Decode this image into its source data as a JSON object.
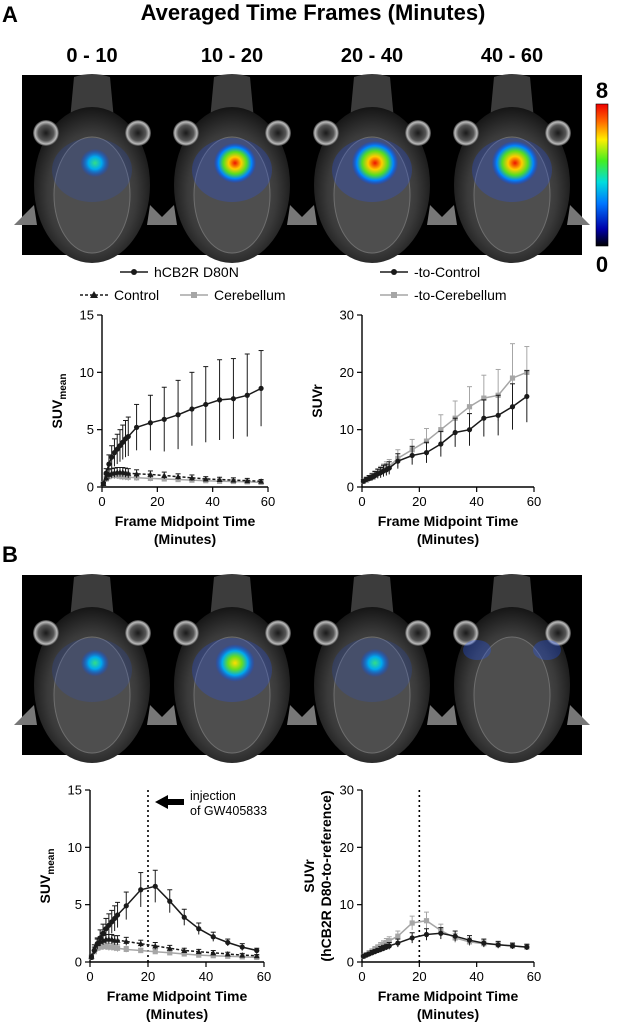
{
  "figure": {
    "panel_a_label": "A",
    "panel_b_label": "B",
    "header_title": "Averaged Time Frames (Minutes)",
    "time_frames": [
      "0 - 10",
      "10 - 20",
      "20 - 40",
      "40 - 60"
    ],
    "colorbar": {
      "max_label": "8",
      "min_label": "0"
    },
    "pet_images_a": [
      {
        "intensity": 0.35
      },
      {
        "intensity": 0.8
      },
      {
        "intensity": 0.95
      },
      {
        "intensity": 0.95
      }
    ],
    "pet_images_b": [
      {
        "intensity": 0.3
      },
      {
        "intensity": 0.7
      },
      {
        "intensity": 0.35
      },
      {
        "intensity": 0.0
      }
    ],
    "legend_a_left": {
      "series_1": "hCB2R D80N",
      "series_2": "Control",
      "series_3": "Cerebellum"
    },
    "legend_a_right": {
      "series_1": "-to-Control",
      "series_2": "-to-Cerebellum"
    },
    "annotation_injection": [
      "injection",
      "of GW405833"
    ],
    "colors": {
      "black_series": "#1a1a1a",
      "gray_series": "#a6a6a6"
    }
  },
  "chart_data": [
    {
      "id": "A-left",
      "type": "line",
      "xlabel": "Frame Midpoint Time",
      "xlabel2": "(Minutes)",
      "ylabel_main": "SUV",
      "ylabel_sub": "mean",
      "xlim": [
        0,
        60
      ],
      "ylim": [
        0,
        15
      ],
      "xticks": [
        "0",
        "20",
        "40",
        "60"
      ],
      "yticks": [
        "0",
        "5",
        "10",
        "15"
      ],
      "series": [
        {
          "name": "hCB2R D80N",
          "style": "solid-circle",
          "x": [
            0.5,
            1.5,
            2.5,
            3.5,
            4.5,
            5.5,
            6.5,
            7.5,
            8.5,
            9.5,
            12.5,
            17.5,
            22.5,
            27.5,
            32.5,
            37.5,
            42.5,
            47.5,
            52.5,
            57.5
          ],
          "y": [
            0.3,
            1.2,
            2.0,
            2.6,
            3.0,
            3.3,
            3.6,
            3.9,
            4.2,
            4.4,
            5.2,
            5.6,
            5.9,
            6.3,
            6.8,
            7.2,
            7.6,
            7.7,
            8.0,
            8.6
          ],
          "err": [
            0.1,
            0.4,
            0.8,
            1.0,
            1.2,
            1.3,
            1.4,
            1.5,
            1.6,
            1.7,
            2.0,
            2.4,
            2.8,
            3.0,
            3.2,
            3.3,
            3.5,
            3.5,
            3.6,
            3.3
          ]
        },
        {
          "name": "Control",
          "style": "dashed-triangle",
          "x": [
            0.5,
            1.5,
            2.5,
            3.5,
            4.5,
            5.5,
            6.5,
            7.5,
            8.5,
            9.5,
            12.5,
            17.5,
            22.5,
            27.5,
            32.5,
            37.5,
            42.5,
            47.5,
            52.5,
            57.5
          ],
          "y": [
            0.3,
            0.8,
            1.1,
            1.2,
            1.25,
            1.3,
            1.3,
            1.3,
            1.25,
            1.2,
            1.15,
            1.1,
            1.0,
            0.9,
            0.8,
            0.7,
            0.65,
            0.6,
            0.55,
            0.5
          ],
          "err": [
            0.1,
            0.3,
            0.4,
            0.4,
            0.4,
            0.4,
            0.4,
            0.4,
            0.4,
            0.4,
            0.35,
            0.3,
            0.3,
            0.25,
            0.25,
            0.2,
            0.2,
            0.2,
            0.2,
            0.15
          ]
        },
        {
          "name": "Cerebellum",
          "style": "gray-square",
          "x": [
            0.5,
            1.5,
            2.5,
            3.5,
            4.5,
            5.5,
            6.5,
            7.5,
            8.5,
            9.5,
            12.5,
            17.5,
            22.5,
            27.5,
            32.5,
            37.5,
            42.5,
            47.5,
            52.5,
            57.5
          ],
          "y": [
            0.3,
            0.7,
            0.9,
            1.0,
            1.0,
            1.0,
            0.95,
            0.9,
            0.9,
            0.85,
            0.8,
            0.75,
            0.7,
            0.65,
            0.6,
            0.55,
            0.5,
            0.48,
            0.45,
            0.4
          ],
          "err": [
            0.1,
            0.25,
            0.3,
            0.3,
            0.3,
            0.3,
            0.3,
            0.3,
            0.3,
            0.3,
            0.25,
            0.25,
            0.2,
            0.2,
            0.2,
            0.2,
            0.15,
            0.15,
            0.15,
            0.1
          ]
        }
      ]
    },
    {
      "id": "A-right",
      "type": "line",
      "xlabel": "Frame Midpoint Time",
      "xlabel2": "(Minutes)",
      "ylabel_main": "SUVr",
      "ylabel_sub": "",
      "xlim": [
        0,
        60
      ],
      "ylim": [
        0,
        30
      ],
      "xticks": [
        "0",
        "20",
        "40",
        "60"
      ],
      "yticks": [
        "0",
        "10",
        "20",
        "30"
      ],
      "series": [
        {
          "name": "-to-Control",
          "style": "solid-circle",
          "x": [
            0.5,
            1.5,
            2.5,
            3.5,
            4.5,
            5.5,
            6.5,
            7.5,
            8.5,
            9.5,
            12.5,
            17.5,
            22.5,
            27.5,
            32.5,
            37.5,
            42.5,
            47.5,
            52.5,
            57.5
          ],
          "y": [
            1.0,
            1.3,
            1.5,
            1.7,
            2.0,
            2.3,
            2.5,
            2.8,
            3.0,
            3.3,
            4.5,
            5.5,
            6.0,
            7.5,
            9.5,
            10.0,
            12.0,
            12.5,
            14.0,
            15.8
          ],
          "err": [
            0.3,
            0.4,
            0.5,
            0.6,
            0.7,
            0.8,
            0.9,
            1.0,
            1.0,
            1.1,
            1.3,
            1.6,
            1.8,
            2.2,
            2.5,
            2.8,
            3.2,
            3.5,
            4.0,
            4.5
          ]
        },
        {
          "name": "-to-Cerebellum",
          "style": "gray-square",
          "x": [
            0.5,
            1.5,
            2.5,
            3.5,
            4.5,
            5.5,
            6.5,
            7.5,
            8.5,
            9.5,
            12.5,
            17.5,
            22.5,
            27.5,
            32.5,
            37.5,
            42.5,
            47.5,
            52.5,
            57.5
          ],
          "y": [
            1.0,
            1.2,
            1.5,
            1.8,
            2.1,
            2.4,
            2.7,
            3.0,
            3.3,
            3.6,
            5.0,
            6.5,
            8.0,
            10.0,
            12.0,
            14.0,
            15.5,
            16.0,
            19.0,
            20.0
          ],
          "err": [
            0.3,
            0.4,
            0.5,
            0.6,
            0.7,
            0.8,
            0.9,
            1.0,
            1.1,
            1.2,
            1.5,
            1.8,
            2.2,
            2.6,
            3.0,
            3.5,
            4.0,
            4.5,
            6.0,
            4.5
          ]
        }
      ]
    },
    {
      "id": "B-left",
      "type": "line",
      "xlabel": "Frame Midpoint Time",
      "xlabel2": "(Minutes)",
      "ylabel_main": "SUV",
      "ylabel_sub": "mean",
      "xlim": [
        0,
        60
      ],
      "ylim": [
        0,
        15
      ],
      "xticks": [
        "0",
        "20",
        "40",
        "60"
      ],
      "yticks": [
        "0",
        "5",
        "10",
        "15"
      ],
      "vline_x": 20,
      "series": [
        {
          "name": "hCB2R D80N",
          "style": "solid-circle",
          "x": [
            0.5,
            1.5,
            2.5,
            3.5,
            4.5,
            5.5,
            6.5,
            7.5,
            8.5,
            9.5,
            12.5,
            17.5,
            22.5,
            27.5,
            32.5,
            37.5,
            42.5,
            47.5,
            52.5,
            57.5
          ],
          "y": [
            0.4,
            1.0,
            1.6,
            2.1,
            2.5,
            2.9,
            3.2,
            3.5,
            3.8,
            4.1,
            4.9,
            6.3,
            6.6,
            5.3,
            3.9,
            2.9,
            2.2,
            1.7,
            1.3,
            1.0
          ],
          "err": [
            0.1,
            0.3,
            0.5,
            0.7,
            0.8,
            0.9,
            1.0,
            1.0,
            1.1,
            1.1,
            1.2,
            1.5,
            1.4,
            1.0,
            0.7,
            0.5,
            0.4,
            0.3,
            0.3,
            0.2
          ]
        },
        {
          "name": "Control",
          "style": "dashed-triangle",
          "x": [
            0.5,
            1.5,
            2.5,
            3.5,
            4.5,
            5.5,
            6.5,
            7.5,
            8.5,
            9.5,
            12.5,
            17.5,
            22.5,
            27.5,
            32.5,
            37.5,
            42.5,
            47.5,
            52.5,
            57.5
          ],
          "y": [
            0.5,
            1.2,
            1.6,
            1.8,
            1.9,
            2.0,
            2.0,
            2.0,
            1.9,
            1.9,
            1.8,
            1.6,
            1.4,
            1.2,
            1.0,
            0.9,
            0.8,
            0.7,
            0.6,
            0.55
          ],
          "err": [
            0.1,
            0.3,
            0.4,
            0.4,
            0.4,
            0.4,
            0.4,
            0.4,
            0.4,
            0.4,
            0.35,
            0.3,
            0.3,
            0.25,
            0.2,
            0.2,
            0.2,
            0.15,
            0.15,
            0.1
          ]
        },
        {
          "name": "Cerebellum",
          "style": "gray-square",
          "x": [
            0.5,
            1.5,
            2.5,
            3.5,
            4.5,
            5.5,
            6.5,
            7.5,
            8.5,
            9.5,
            12.5,
            17.5,
            22.5,
            27.5,
            32.5,
            37.5,
            42.5,
            47.5,
            52.5,
            57.5
          ],
          "y": [
            0.4,
            0.9,
            1.2,
            1.3,
            1.35,
            1.35,
            1.3,
            1.3,
            1.25,
            1.2,
            1.1,
            1.0,
            0.9,
            0.8,
            0.7,
            0.6,
            0.55,
            0.5,
            0.45,
            0.4
          ],
          "err": [
            0.1,
            0.25,
            0.3,
            0.3,
            0.3,
            0.3,
            0.3,
            0.3,
            0.3,
            0.3,
            0.25,
            0.2,
            0.2,
            0.2,
            0.15,
            0.15,
            0.15,
            0.1,
            0.1,
            0.1
          ]
        }
      ]
    },
    {
      "id": "B-right",
      "type": "line",
      "xlabel": "Frame Midpoint Time",
      "xlabel2": "(Minutes)",
      "ylabel_main": "SUVr",
      "ylabel_sub": "(hCB2R D80-to-reference)",
      "xlim": [
        0,
        60
      ],
      "ylim": [
        0,
        30
      ],
      "xticks": [
        "0",
        "20",
        "40",
        "60"
      ],
      "yticks": [
        "0",
        "10",
        "20",
        "30"
      ],
      "vline_x": 20,
      "series": [
        {
          "name": "-to-Control",
          "style": "solid-circle",
          "x": [
            0.5,
            1.5,
            2.5,
            3.5,
            4.5,
            5.5,
            6.5,
            7.5,
            8.5,
            9.5,
            12.5,
            17.5,
            22.5,
            27.5,
            32.5,
            37.5,
            42.5,
            47.5,
            52.5,
            57.5
          ],
          "y": [
            1.0,
            1.2,
            1.4,
            1.6,
            1.8,
            2.0,
            2.2,
            2.4,
            2.6,
            2.8,
            3.3,
            4.2,
            4.8,
            5.0,
            4.5,
            3.8,
            3.3,
            3.0,
            2.8,
            2.6
          ],
          "err": [
            0.2,
            0.3,
            0.3,
            0.4,
            0.4,
            0.4,
            0.5,
            0.5,
            0.5,
            0.6,
            0.7,
            0.9,
            1.0,
            1.0,
            0.9,
            0.8,
            0.7,
            0.6,
            0.5,
            0.5
          ]
        },
        {
          "name": "-to-Cerebellum",
          "style": "gray-square",
          "x": [
            0.5,
            1.5,
            2.5,
            3.5,
            4.5,
            5.5,
            6.5,
            7.5,
            8.5,
            9.5,
            12.5,
            17.5,
            22.5,
            27.5,
            32.5,
            37.5,
            42.5,
            47.5,
            52.5,
            57.5
          ],
          "y": [
            1.0,
            1.3,
            1.6,
            1.9,
            2.2,
            2.5,
            2.8,
            3.1,
            3.4,
            3.7,
            4.5,
            6.8,
            7.2,
            5.5,
            4.2,
            3.5,
            3.2,
            3.0,
            2.8,
            2.6
          ],
          "err": [
            0.2,
            0.3,
            0.4,
            0.4,
            0.5,
            0.5,
            0.6,
            0.6,
            0.7,
            0.7,
            0.9,
            1.2,
            1.5,
            1.1,
            0.8,
            0.7,
            0.6,
            0.5,
            0.5,
            0.5
          ]
        }
      ]
    }
  ]
}
